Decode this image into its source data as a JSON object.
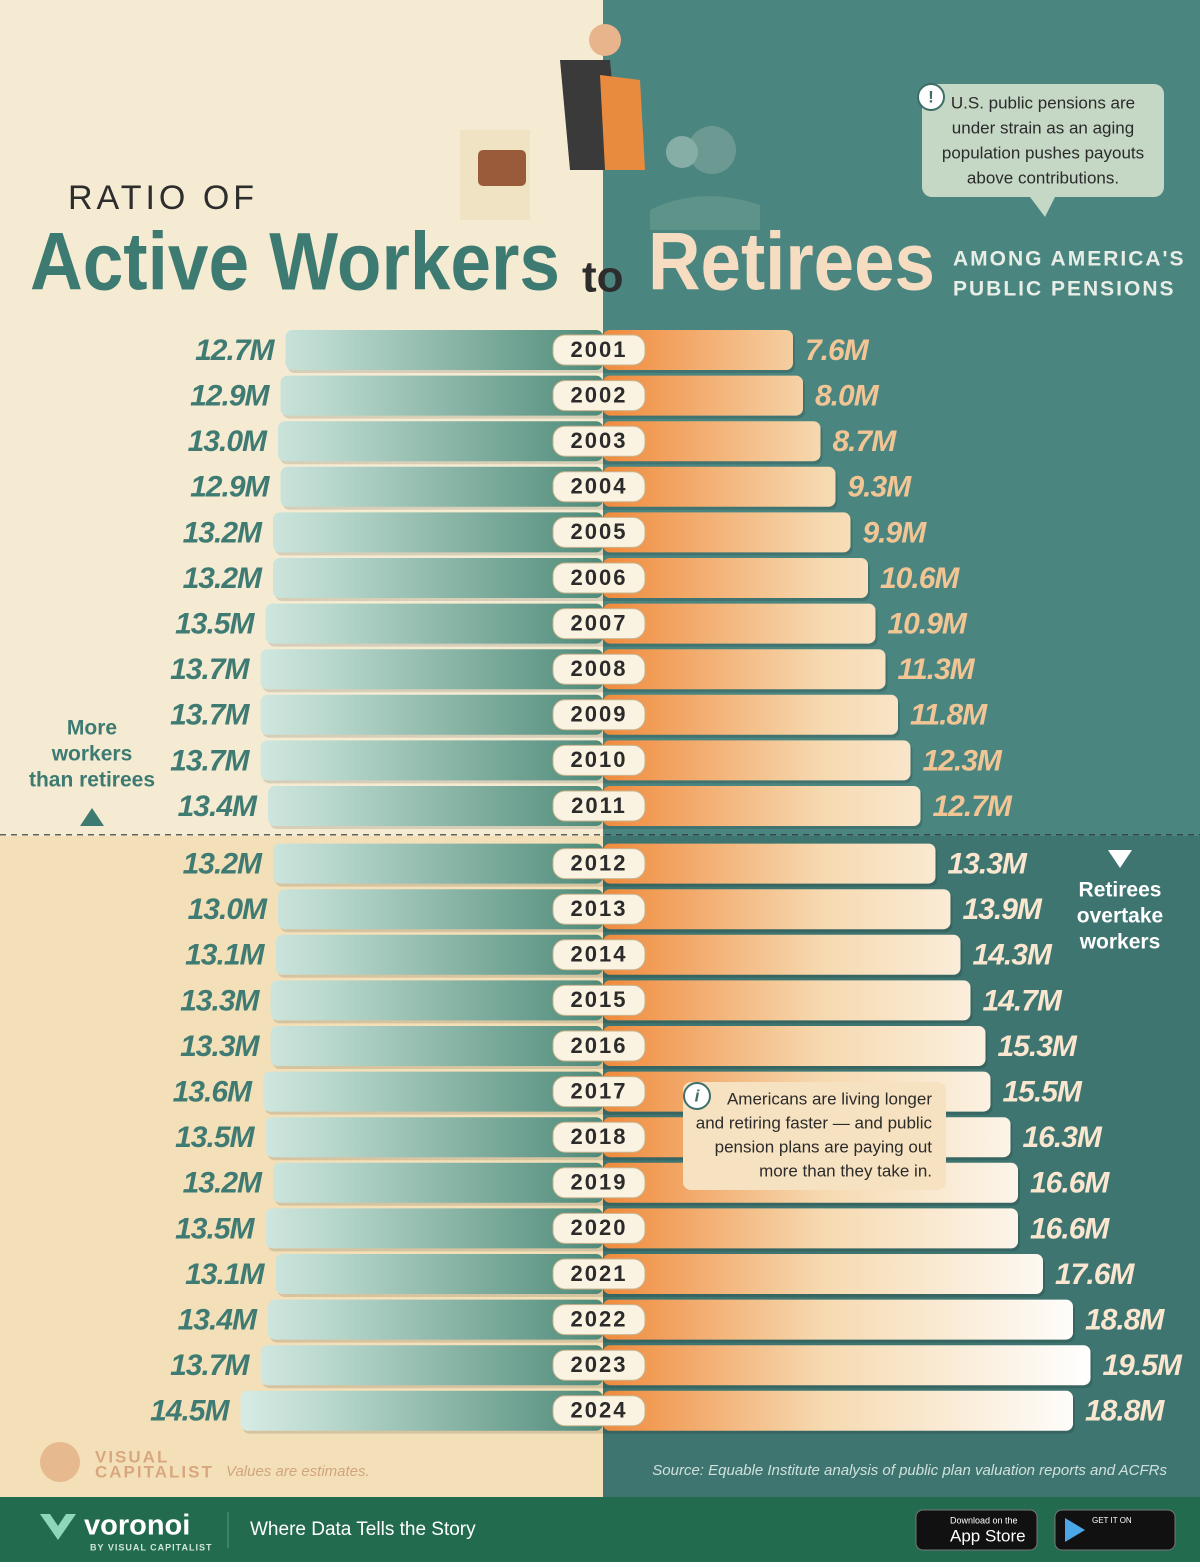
{
  "chart_data": {
    "type": "butterfly",
    "title_prefix": "RATIO OF",
    "title_connector": "to",
    "subtitle": [
      "AMONG AMERICA'S",
      "PUBLIC PENSIONS"
    ],
    "categories": [
      "2001",
      "2002",
      "2003",
      "2004",
      "2005",
      "2006",
      "2007",
      "2008",
      "2009",
      "2010",
      "2011",
      "2012",
      "2013",
      "2014",
      "2015",
      "2016",
      "2017",
      "2018",
      "2019",
      "2020",
      "2021",
      "2022",
      "2023",
      "2024"
    ],
    "series": [
      {
        "name": "Active Workers",
        "color": "#4f8a78",
        "values": [
          12.7,
          12.9,
          13.0,
          12.9,
          13.2,
          13.2,
          13.5,
          13.7,
          13.7,
          13.7,
          13.4,
          13.2,
          13.0,
          13.1,
          13.3,
          13.3,
          13.6,
          13.5,
          13.2,
          13.5,
          13.1,
          13.4,
          13.7,
          14.5
        ],
        "value_labels": [
          "12.7M",
          "12.9M",
          "13.0M",
          "12.9M",
          "13.2M",
          "13.2M",
          "13.5M",
          "13.7M",
          "13.7M",
          "13.7M",
          "13.4M",
          "13.2M",
          "13.0M",
          "13.1M",
          "13.3M",
          "13.3M",
          "13.6M",
          "13.5M",
          "13.2M",
          "13.5M",
          "13.1M",
          "13.4M",
          "13.7M",
          "14.5M"
        ]
      },
      {
        "name": "Retirees",
        "color": "#f08a3c",
        "values": [
          7.6,
          8.0,
          8.7,
          9.3,
          9.9,
          10.6,
          10.9,
          11.3,
          11.8,
          12.3,
          12.7,
          13.3,
          13.9,
          14.3,
          14.7,
          15.3,
          15.5,
          16.3,
          16.6,
          16.6,
          17.6,
          18.8,
          19.5,
          18.8
        ],
        "value_labels": [
          "7.6M",
          "8.0M",
          "8.7M",
          "9.3M",
          "9.9M",
          "10.6M",
          "10.9M",
          "11.3M",
          "11.8M",
          "12.3M",
          "12.7M",
          "13.3M",
          "13.9M",
          "14.3M",
          "14.7M",
          "15.3M",
          "15.5M",
          "16.3M",
          "16.6M",
          "16.6M",
          "17.6M",
          "18.8M",
          "19.5M",
          "18.8M"
        ]
      }
    ],
    "annotations": {
      "top_note": [
        "U.S. public pensions are",
        "under strain as an aging",
        "population pushes payouts",
        "above contributions."
      ],
      "top_note_icon": "!",
      "mid_note": [
        "Americans are living longer",
        "and retiring faster — and public",
        "pension plans are paying out",
        "more than they take in."
      ],
      "mid_note_icon": "i",
      "upper_side": [
        "More",
        "workers",
        "than retirees"
      ],
      "lower_side": [
        "Retirees",
        "overtake",
        "workers"
      ],
      "disclaimer": "Values are estimates.",
      "source": "Source: Equable Institute analysis of public plan valuation reports and ACFRs",
      "brand": [
        "VISUAL",
        "CAPITALIST"
      ]
    }
  },
  "footer": {
    "logo": "voronoi",
    "logo_sub": "BY VISUAL CAPITALIST",
    "tagline": "Where Data Tells the Story",
    "app_store": [
      "Download on the",
      "App Store"
    ],
    "google_play": "GET IT ON"
  }
}
